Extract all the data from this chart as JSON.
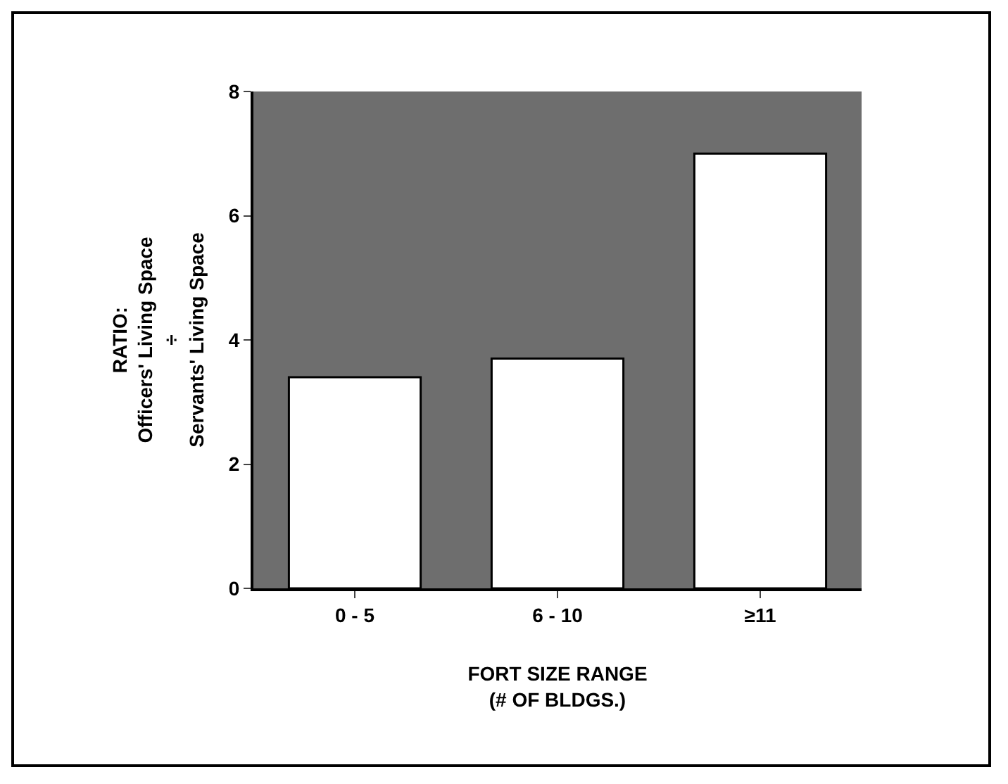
{
  "chart_data": {
    "type": "bar",
    "categories": [
      "0 - 5",
      "6 - 10",
      "≥11"
    ],
    "values": [
      3.4,
      3.7,
      7.0
    ],
    "color": "#ffffff",
    "ylim": [
      0,
      8
    ],
    "yticks": [
      0,
      2,
      4,
      6,
      8
    ],
    "xlabel": "FORT SIZE RANGE\n(# OF BLDGS.)",
    "ylabel": "RATIO:\nOfficers' Living Space\n÷\nServants' Living Space"
  }
}
